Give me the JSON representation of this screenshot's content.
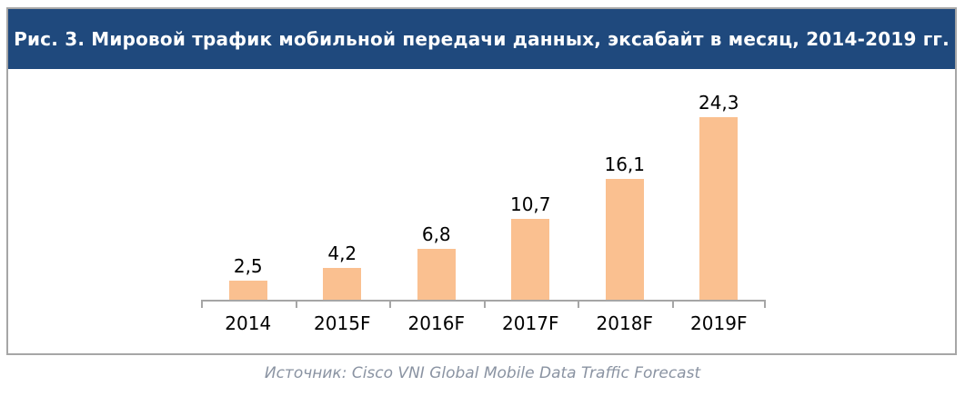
{
  "figure": {
    "title": "Рис. 3. Мировой трафик мобильной передачи данных, эксабайт в месяц, 2014-2019 гг.",
    "source": "Источник: Cisco VNI Global Mobile Data Traffic Forecast"
  },
  "colors": {
    "title_bg": "#1F497D",
    "title_text": "#FFFFFF",
    "bar_fill": "#FAC090",
    "axis": "#A6A6A6",
    "box_border": "#A6A6A6",
    "value_label_text": "#000000",
    "source_text": "#8A93A2"
  },
  "chart_data": {
    "type": "bar",
    "categories": [
      "2014",
      "2015F",
      "2016F",
      "2017F",
      "2018F",
      "2019F"
    ],
    "values": [
      2.5,
      4.2,
      6.8,
      10.7,
      16.1,
      24.3
    ],
    "value_labels": [
      "2,5",
      "4,2",
      "6,8",
      "10,7",
      "16,1",
      "24,3"
    ],
    "title": "Рис. 3. Мировой трафик мобильной передачи данных, эксабайт в месяц, 2014-2019 гг.",
    "xlabel": "",
    "ylabel": "",
    "ylim": [
      0,
      25
    ],
    "grid": false,
    "legend": false,
    "data_labels": true,
    "y_axis_visible": false
  }
}
